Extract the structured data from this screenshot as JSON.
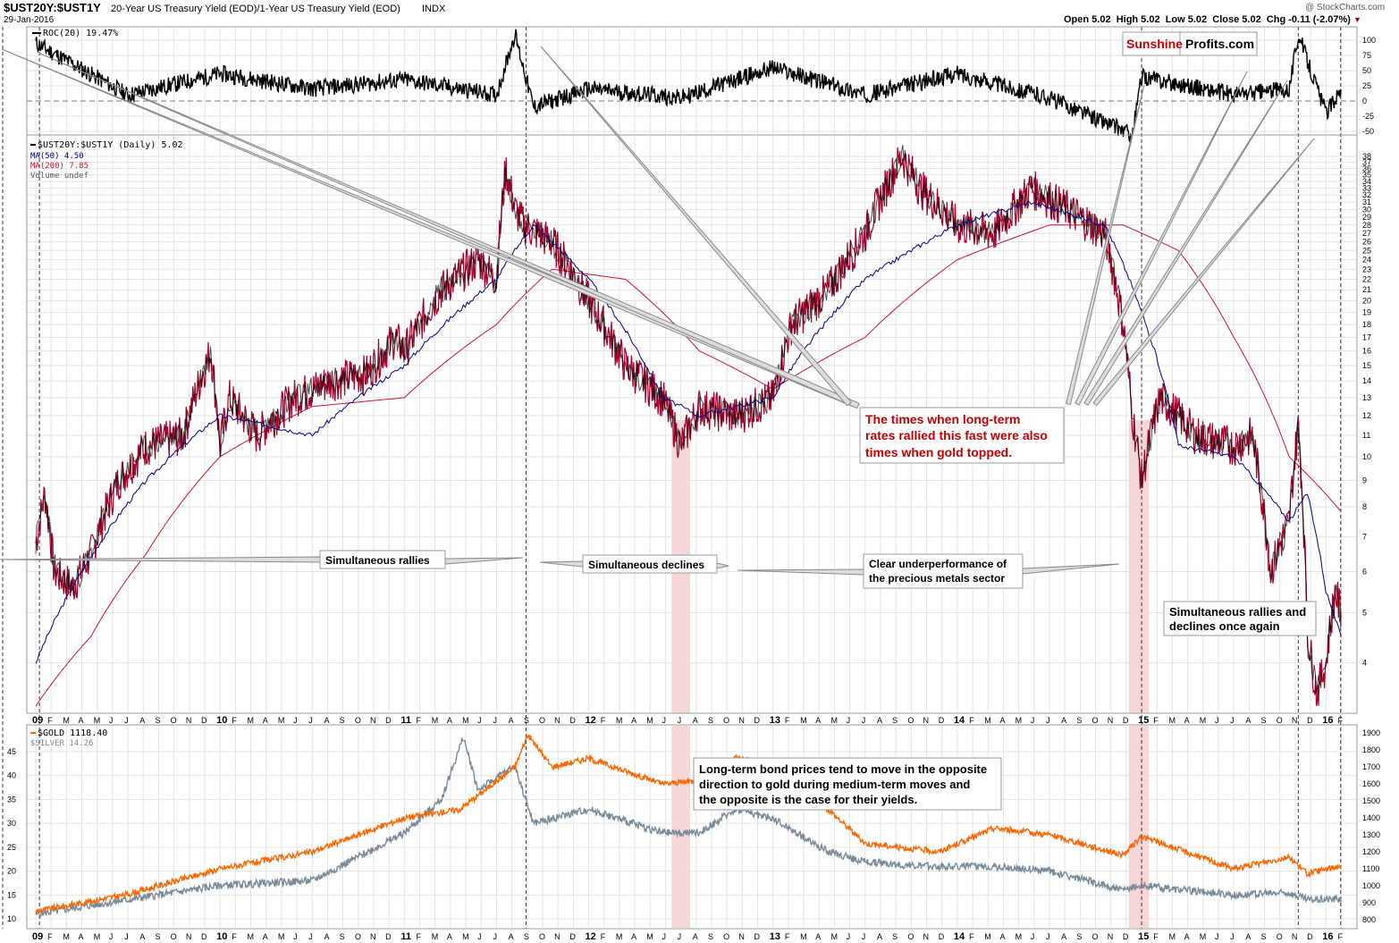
{
  "header": {
    "symbol": "$UST20Y:$UST1Y",
    "description": "20-Year US Treasury Yield (EOD)/1-Year US Treasury Yield (EOD)",
    "exchange": "INDX",
    "date": "29-Jan-2016",
    "copyright": "@ StockCharts.com",
    "ohlc": "Open 5.02  High 5.02  Low 5.02  Close 5.02  Chg -0.11 (-2.07%)",
    "down_marker": "▼"
  },
  "brand": {
    "part1": "Sunshine",
    "part2": "Profits.com",
    "color1": "#cc0000",
    "color2": "#000000"
  },
  "colors": {
    "price": "#000000",
    "price_down": "#a0002a",
    "ma50": "#000080",
    "ma200": "#cc1133",
    "gold": "#ff6600",
    "silver": "#7a8a99",
    "shade": "#f6d6d6"
  },
  "annotations": {
    "topped": [
      "The times when long-term",
      "rates rallied this fast were also",
      "times when gold topped."
    ],
    "sim_rallies": "Simultaneous rallies",
    "sim_declines": "Simultaneous declines",
    "underperf": [
      "Clear underperformance of",
      "the precious metals sector"
    ],
    "sim_again": [
      "Simultaneous rallies and",
      "declines once again"
    ],
    "bonds": [
      "Long-term bond prices tend to move in the opposite",
      "direction to gold during medium-term moves and",
      "the opposite is the case for their yields."
    ]
  },
  "chart_data": [
    {
      "type": "line",
      "panel": "roc",
      "legend": "ROC(20) 19.47%",
      "ylim": [
        -50,
        100
      ],
      "ticks": [
        100,
        75,
        50,
        25,
        0,
        -25,
        -50
      ],
      "series": [
        {
          "name": "ROC(20)",
          "x": [
            2009.0,
            2009.5,
            2010.0,
            2010.5,
            2011.0,
            2011.5,
            2011.6,
            2011.7,
            2012.0,
            2012.5,
            2013.0,
            2013.5,
            2014.0,
            2014.5,
            2014.95,
            2015.0,
            2015.5,
            2015.8,
            2015.85,
            2016.0,
            2016.08
          ],
          "values": [
            95,
            10,
            45,
            20,
            35,
            10,
            110,
            -10,
            20,
            5,
            55,
            10,
            45,
            5,
            -55,
            40,
            10,
            20,
            110,
            -20,
            19.47
          ]
        }
      ]
    },
    {
      "type": "line",
      "panel": "price",
      "legend": [
        "$UST20Y:$UST1Y (Daily) 5.02",
        "MA(50) 4.50",
        "MA(200) 7.85",
        "Volume undef"
      ],
      "scale": "log",
      "ylim": [
        3.3,
        40
      ],
      "ticks": [
        38,
        37,
        36,
        35,
        34,
        33,
        32,
        31,
        30,
        29,
        28,
        27,
        26,
        25,
        24,
        23,
        22,
        21,
        20,
        19,
        18,
        17,
        16,
        15,
        14,
        13,
        12,
        11,
        10,
        9,
        8,
        7,
        6,
        5,
        4
      ],
      "x_ticks": [
        "09",
        "F",
        "M",
        "A",
        "M",
        "J",
        "J",
        "A",
        "S",
        "O",
        "N",
        "D",
        "10",
        "F",
        "M",
        "A",
        "M",
        "J",
        "J",
        "A",
        "S",
        "O",
        "N",
        "D",
        "11",
        "F",
        "M",
        "A",
        "M",
        "J",
        "J",
        "A",
        "S",
        "O",
        "N",
        "D",
        "12",
        "F",
        "M",
        "A",
        "M",
        "J",
        "J",
        "A",
        "S",
        "O",
        "N",
        "D",
        "13",
        "F",
        "M",
        "A",
        "M",
        "J",
        "J",
        "A",
        "S",
        "O",
        "N",
        "D",
        "14",
        "F",
        "M",
        "A",
        "M",
        "J",
        "J",
        "A",
        "S",
        "O",
        "N",
        "D",
        "15",
        "F",
        "M",
        "A",
        "M",
        "J",
        "J",
        "A",
        "S",
        "O",
        "N",
        "D",
        "16",
        "F"
      ],
      "series": [
        {
          "name": "$UST20Y:$UST1Y",
          "x": [
            2009.0,
            2009.05,
            2009.1,
            2009.2,
            2009.3,
            2009.45,
            2009.6,
            2009.8,
            2009.95,
            2010.0,
            2010.05,
            2010.2,
            2010.4,
            2010.6,
            2010.8,
            2010.95,
            2011.0,
            2011.2,
            2011.4,
            2011.5,
            2011.55,
            2011.6,
            2011.65,
            2011.8,
            2012.0,
            2012.2,
            2012.4,
            2012.5,
            2012.6,
            2012.8,
            2013.0,
            2013.1,
            2013.3,
            2013.5,
            2013.7,
            2013.8,
            2014.0,
            2014.2,
            2014.4,
            2014.6,
            2014.8,
            2014.9,
            2014.95,
            2015.0,
            2015.1,
            2015.3,
            2015.5,
            2015.6,
            2015.7,
            2015.8,
            2015.85,
            2015.9,
            2015.95,
            2016.0,
            2016.05,
            2016.08
          ],
          "values": [
            6.8,
            8.5,
            6.0,
            5.6,
            6.5,
            9.0,
            10.5,
            11.0,
            16.0,
            10.5,
            13.0,
            11.0,
            13.0,
            14.0,
            14.5,
            17.0,
            16.0,
            21.0,
            24.0,
            22.0,
            36.0,
            30.0,
            28.0,
            26.0,
            20.0,
            15.0,
            13.0,
            10.5,
            12.5,
            12.0,
            13.0,
            18.0,
            21.0,
            27.0,
            38.0,
            33.0,
            28.0,
            27.0,
            33.0,
            30.0,
            27.0,
            18.0,
            12.0,
            9.0,
            13.0,
            11.0,
            10.5,
            11.0,
            6.0,
            7.5,
            11.5,
            4.5,
            3.5,
            4.0,
            5.5,
            5.02
          ]
        },
        {
          "name": "MA(50)",
          "x": [
            2009.0,
            2009.3,
            2009.6,
            2010.0,
            2010.5,
            2011.0,
            2011.5,
            2011.7,
            2012.0,
            2012.4,
            2012.6,
            2013.0,
            2013.5,
            2014.0,
            2014.4,
            2014.8,
            2015.0,
            2015.2,
            2015.5,
            2015.8,
            2015.9,
            2016.0,
            2016.08
          ],
          "values": [
            4.0,
            6.4,
            9.0,
            12.0,
            11.0,
            15.0,
            22.0,
            28.0,
            22.0,
            13.0,
            12.0,
            13.0,
            22.0,
            28.0,
            31.0,
            28.0,
            19.0,
            10.5,
            10.0,
            7.5,
            8.5,
            5.5,
            4.5
          ]
        },
        {
          "name": "MA(200)",
          "x": [
            2009.0,
            2009.3,
            2009.6,
            2010.0,
            2010.5,
            2011.0,
            2011.5,
            2011.8,
            2012.2,
            2012.6,
            2013.0,
            2013.5,
            2014.0,
            2014.5,
            2014.9,
            2015.2,
            2015.5,
            2015.8,
            2016.08
          ],
          "values": [
            3.3,
            4.5,
            6.5,
            10.0,
            12.5,
            13.0,
            18.0,
            23.0,
            22.0,
            16.0,
            13.5,
            17.0,
            24.0,
            28.0,
            28.0,
            25.0,
            17.0,
            10.0,
            7.85
          ]
        }
      ]
    },
    {
      "type": "line",
      "panel": "metals",
      "legend": [
        "$GOLD 1118.40",
        "$SILVER 14.26"
      ],
      "left_ticks": [
        45,
        40,
        35,
        30,
        25,
        20,
        15,
        10
      ],
      "right_ticks": [
        1900,
        1800,
        1700,
        1600,
        1500,
        1400,
        1300,
        1200,
        1100,
        1000,
        900,
        800
      ],
      "series": [
        {
          "name": "$GOLD",
          "axis": "right",
          "x": [
            2009.0,
            2009.5,
            2010.0,
            2010.5,
            2011.0,
            2011.3,
            2011.6,
            2011.67,
            2011.8,
            2012.0,
            2012.4,
            2012.6,
            2012.8,
            2013.0,
            2013.3,
            2013.5,
            2013.9,
            2014.2,
            2014.5,
            2014.9,
            2015.0,
            2015.5,
            2015.8,
            2015.9,
            2016.08
          ],
          "values": [
            850,
            950,
            1100,
            1200,
            1400,
            1450,
            1700,
            1890,
            1700,
            1750,
            1600,
            1620,
            1760,
            1700,
            1450,
            1250,
            1200,
            1340,
            1300,
            1180,
            1290,
            1100,
            1170,
            1070,
            1118.4
          ]
        },
        {
          "name": "$SILVER",
          "axis": "left",
          "x": [
            2009.0,
            2009.5,
            2010.0,
            2010.5,
            2011.0,
            2011.2,
            2011.32,
            2011.4,
            2011.6,
            2011.7,
            2012.0,
            2012.4,
            2012.6,
            2012.8,
            2013.0,
            2013.3,
            2013.5,
            2013.8,
            2014.2,
            2014.5,
            2014.9,
            2015.0,
            2015.5,
            2015.8,
            2015.9,
            2016.08
          ],
          "values": [
            11,
            14,
            17,
            18,
            28,
            35,
            48,
            37,
            42,
            30,
            33,
            28,
            28,
            33,
            31,
            24,
            22,
            21,
            21,
            20,
            16,
            17,
            15,
            15.5,
            14,
            14.26
          ]
        }
      ]
    }
  ]
}
